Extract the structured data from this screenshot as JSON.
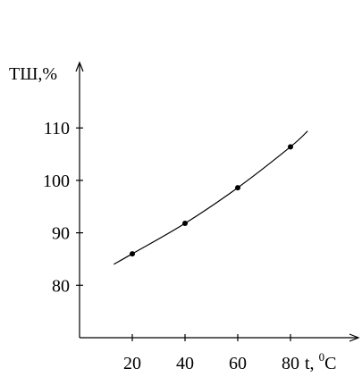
{
  "chart_data": {
    "type": "line",
    "title": "",
    "ylabel": "ТШ,%",
    "xlabel_text": "t, ",
    "xlabel_sup": "0",
    "xlabel_unit": "C",
    "xlim": [
      0,
      90
    ],
    "ylim": [
      70,
      120
    ],
    "x_ticks": [
      20,
      40,
      60,
      80
    ],
    "y_ticks": [
      80,
      90,
      100,
      110
    ],
    "grid": false,
    "series": [
      {
        "points": [
          {
            "x": 20,
            "y": 86
          },
          {
            "x": 40,
            "y": 91.8
          },
          {
            "x": 60,
            "y": 98.6
          },
          {
            "x": 80,
            "y": 106.4
          }
        ],
        "trend_start": {
          "x": 13,
          "y": 84
        },
        "trend_end": {
          "x": 86.5,
          "y": 109.4
        }
      }
    ]
  }
}
